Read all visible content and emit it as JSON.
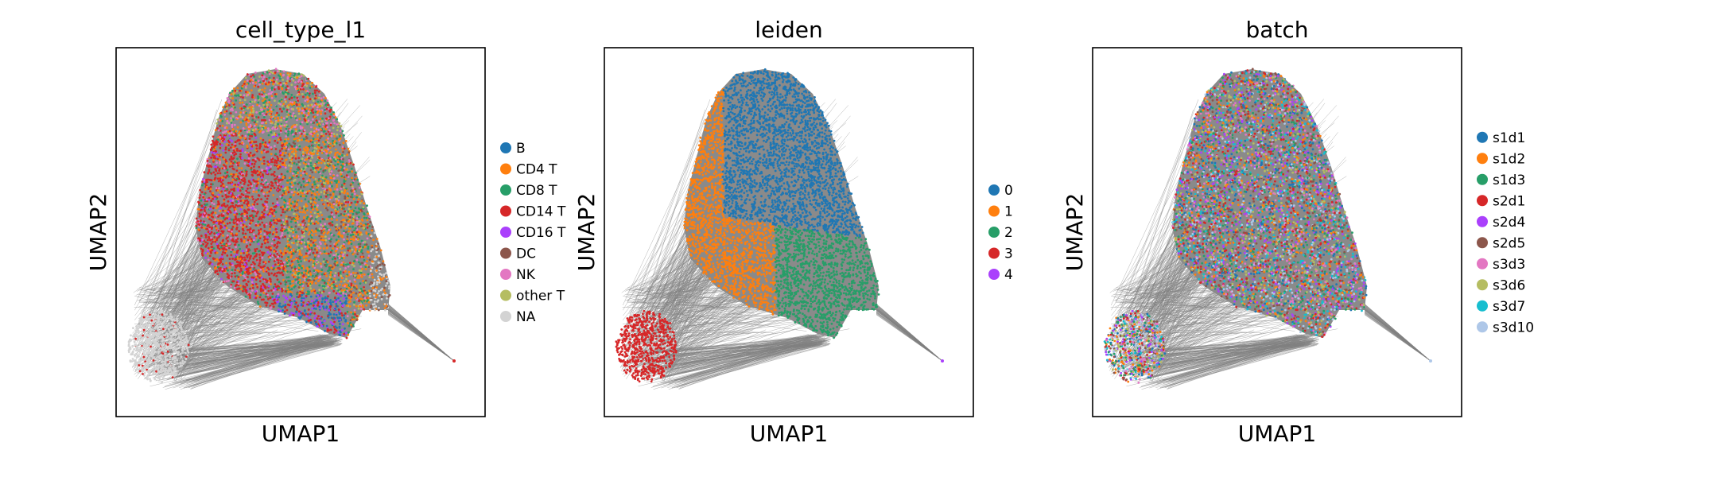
{
  "chart_data": [
    {
      "type": "scatter",
      "title": "cell_type_l1",
      "xlabel": "UMAP1",
      "ylabel": "UMAP2",
      "xticks": [],
      "yticks": [],
      "overlay": "gray k-NN graph edges drawn beneath the points",
      "legend_position": "right",
      "legend": [
        {
          "label": "B",
          "color": "#1f77b4"
        },
        {
          "label": "CD4 T",
          "color": "#ff7f0e"
        },
        {
          "label": "CD8 T",
          "color": "#279e68"
        },
        {
          "label": "CD14 T",
          "color": "#d62728"
        },
        {
          "label": "CD16 T",
          "color": "#aa40fc"
        },
        {
          "label": "DC",
          "color": "#8c564b"
        },
        {
          "label": "NK",
          "color": "#e377c2"
        },
        {
          "label": "other T",
          "color": "#b5bd61"
        },
        {
          "label": "NA",
          "color": "#d3d3d3"
        }
      ]
    },
    {
      "type": "scatter",
      "title": "leiden",
      "xlabel": "UMAP1",
      "ylabel": "UMAP2",
      "xticks": [],
      "yticks": [],
      "overlay": "gray k-NN graph edges drawn beneath the points",
      "legend_position": "right",
      "legend": [
        {
          "label": "0",
          "color": "#1f77b4"
        },
        {
          "label": "1",
          "color": "#ff7f0e"
        },
        {
          "label": "2",
          "color": "#279e68"
        },
        {
          "label": "3",
          "color": "#d62728"
        },
        {
          "label": "4",
          "color": "#aa40fc"
        }
      ]
    },
    {
      "type": "scatter",
      "title": "batch",
      "xlabel": "UMAP1",
      "ylabel": "UMAP2",
      "xticks": [],
      "yticks": [],
      "overlay": "gray k-NN graph edges drawn beneath the points",
      "legend_position": "right",
      "legend": [
        {
          "label": "s1d1",
          "color": "#1f77b4"
        },
        {
          "label": "s1d2",
          "color": "#ff7f0e"
        },
        {
          "label": "s1d3",
          "color": "#279e68"
        },
        {
          "label": "s2d1",
          "color": "#d62728"
        },
        {
          "label": "s2d4",
          "color": "#aa40fc"
        },
        {
          "label": "s2d5",
          "color": "#8c564b"
        },
        {
          "label": "s3d3",
          "color": "#e377c2"
        },
        {
          "label": "s3d6",
          "color": "#b5bd61"
        },
        {
          "label": "s3d7",
          "color": "#17becf"
        },
        {
          "label": "s3d10",
          "color": "#aec7e8"
        }
      ]
    }
  ]
}
